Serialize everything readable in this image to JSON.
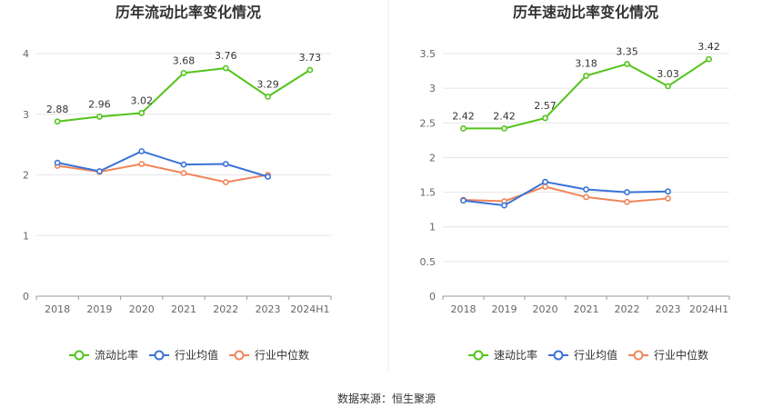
{
  "source_text": "数据来源：恒生聚源",
  "chart_data": [
    {
      "type": "line",
      "title": "历年流动比率变化情况",
      "categories": [
        "2018",
        "2019",
        "2020",
        "2021",
        "2022",
        "2023",
        "2024H1"
      ],
      "ylim": [
        0,
        4
      ],
      "yticks": [
        "0",
        "1",
        "2",
        "3",
        "4"
      ],
      "grid": true,
      "legend_position": "bottom",
      "series": [
        {
          "name": "流动比率",
          "color": "#52c41a",
          "labels": true,
          "values": [
            2.88,
            2.96,
            3.02,
            3.68,
            3.76,
            3.29,
            3.73
          ]
        },
        {
          "name": "行业均值",
          "color": "#3a72d8",
          "labels": false,
          "values": [
            2.2,
            2.06,
            2.39,
            2.17,
            2.18,
            1.97,
            null
          ]
        },
        {
          "name": "行业中位数",
          "color": "#f0855a",
          "labels": false,
          "values": [
            2.15,
            2.05,
            2.18,
            2.03,
            1.88,
            2.0,
            null
          ]
        }
      ]
    },
    {
      "type": "line",
      "title": "历年速动比率变化情况",
      "categories": [
        "2018",
        "2019",
        "2020",
        "2021",
        "2022",
        "2023",
        "2024H1"
      ],
      "ylim": [
        0,
        3.5
      ],
      "yticks": [
        "0",
        "0.5",
        "1",
        "1.5",
        "2",
        "2.5",
        "3",
        "3.5"
      ],
      "grid": true,
      "legend_position": "bottom",
      "series": [
        {
          "name": "速动比率",
          "color": "#52c41a",
          "labels": true,
          "values": [
            2.42,
            2.42,
            2.57,
            3.18,
            3.35,
            3.03,
            3.42
          ]
        },
        {
          "name": "行业均值",
          "color": "#3a72d8",
          "labels": false,
          "values": [
            1.38,
            1.31,
            1.65,
            1.54,
            1.5,
            1.51,
            null
          ]
        },
        {
          "name": "行业中位数",
          "color": "#f0855a",
          "labels": false,
          "values": [
            1.39,
            1.37,
            1.58,
            1.43,
            1.36,
            1.41,
            null
          ]
        }
      ]
    }
  ]
}
